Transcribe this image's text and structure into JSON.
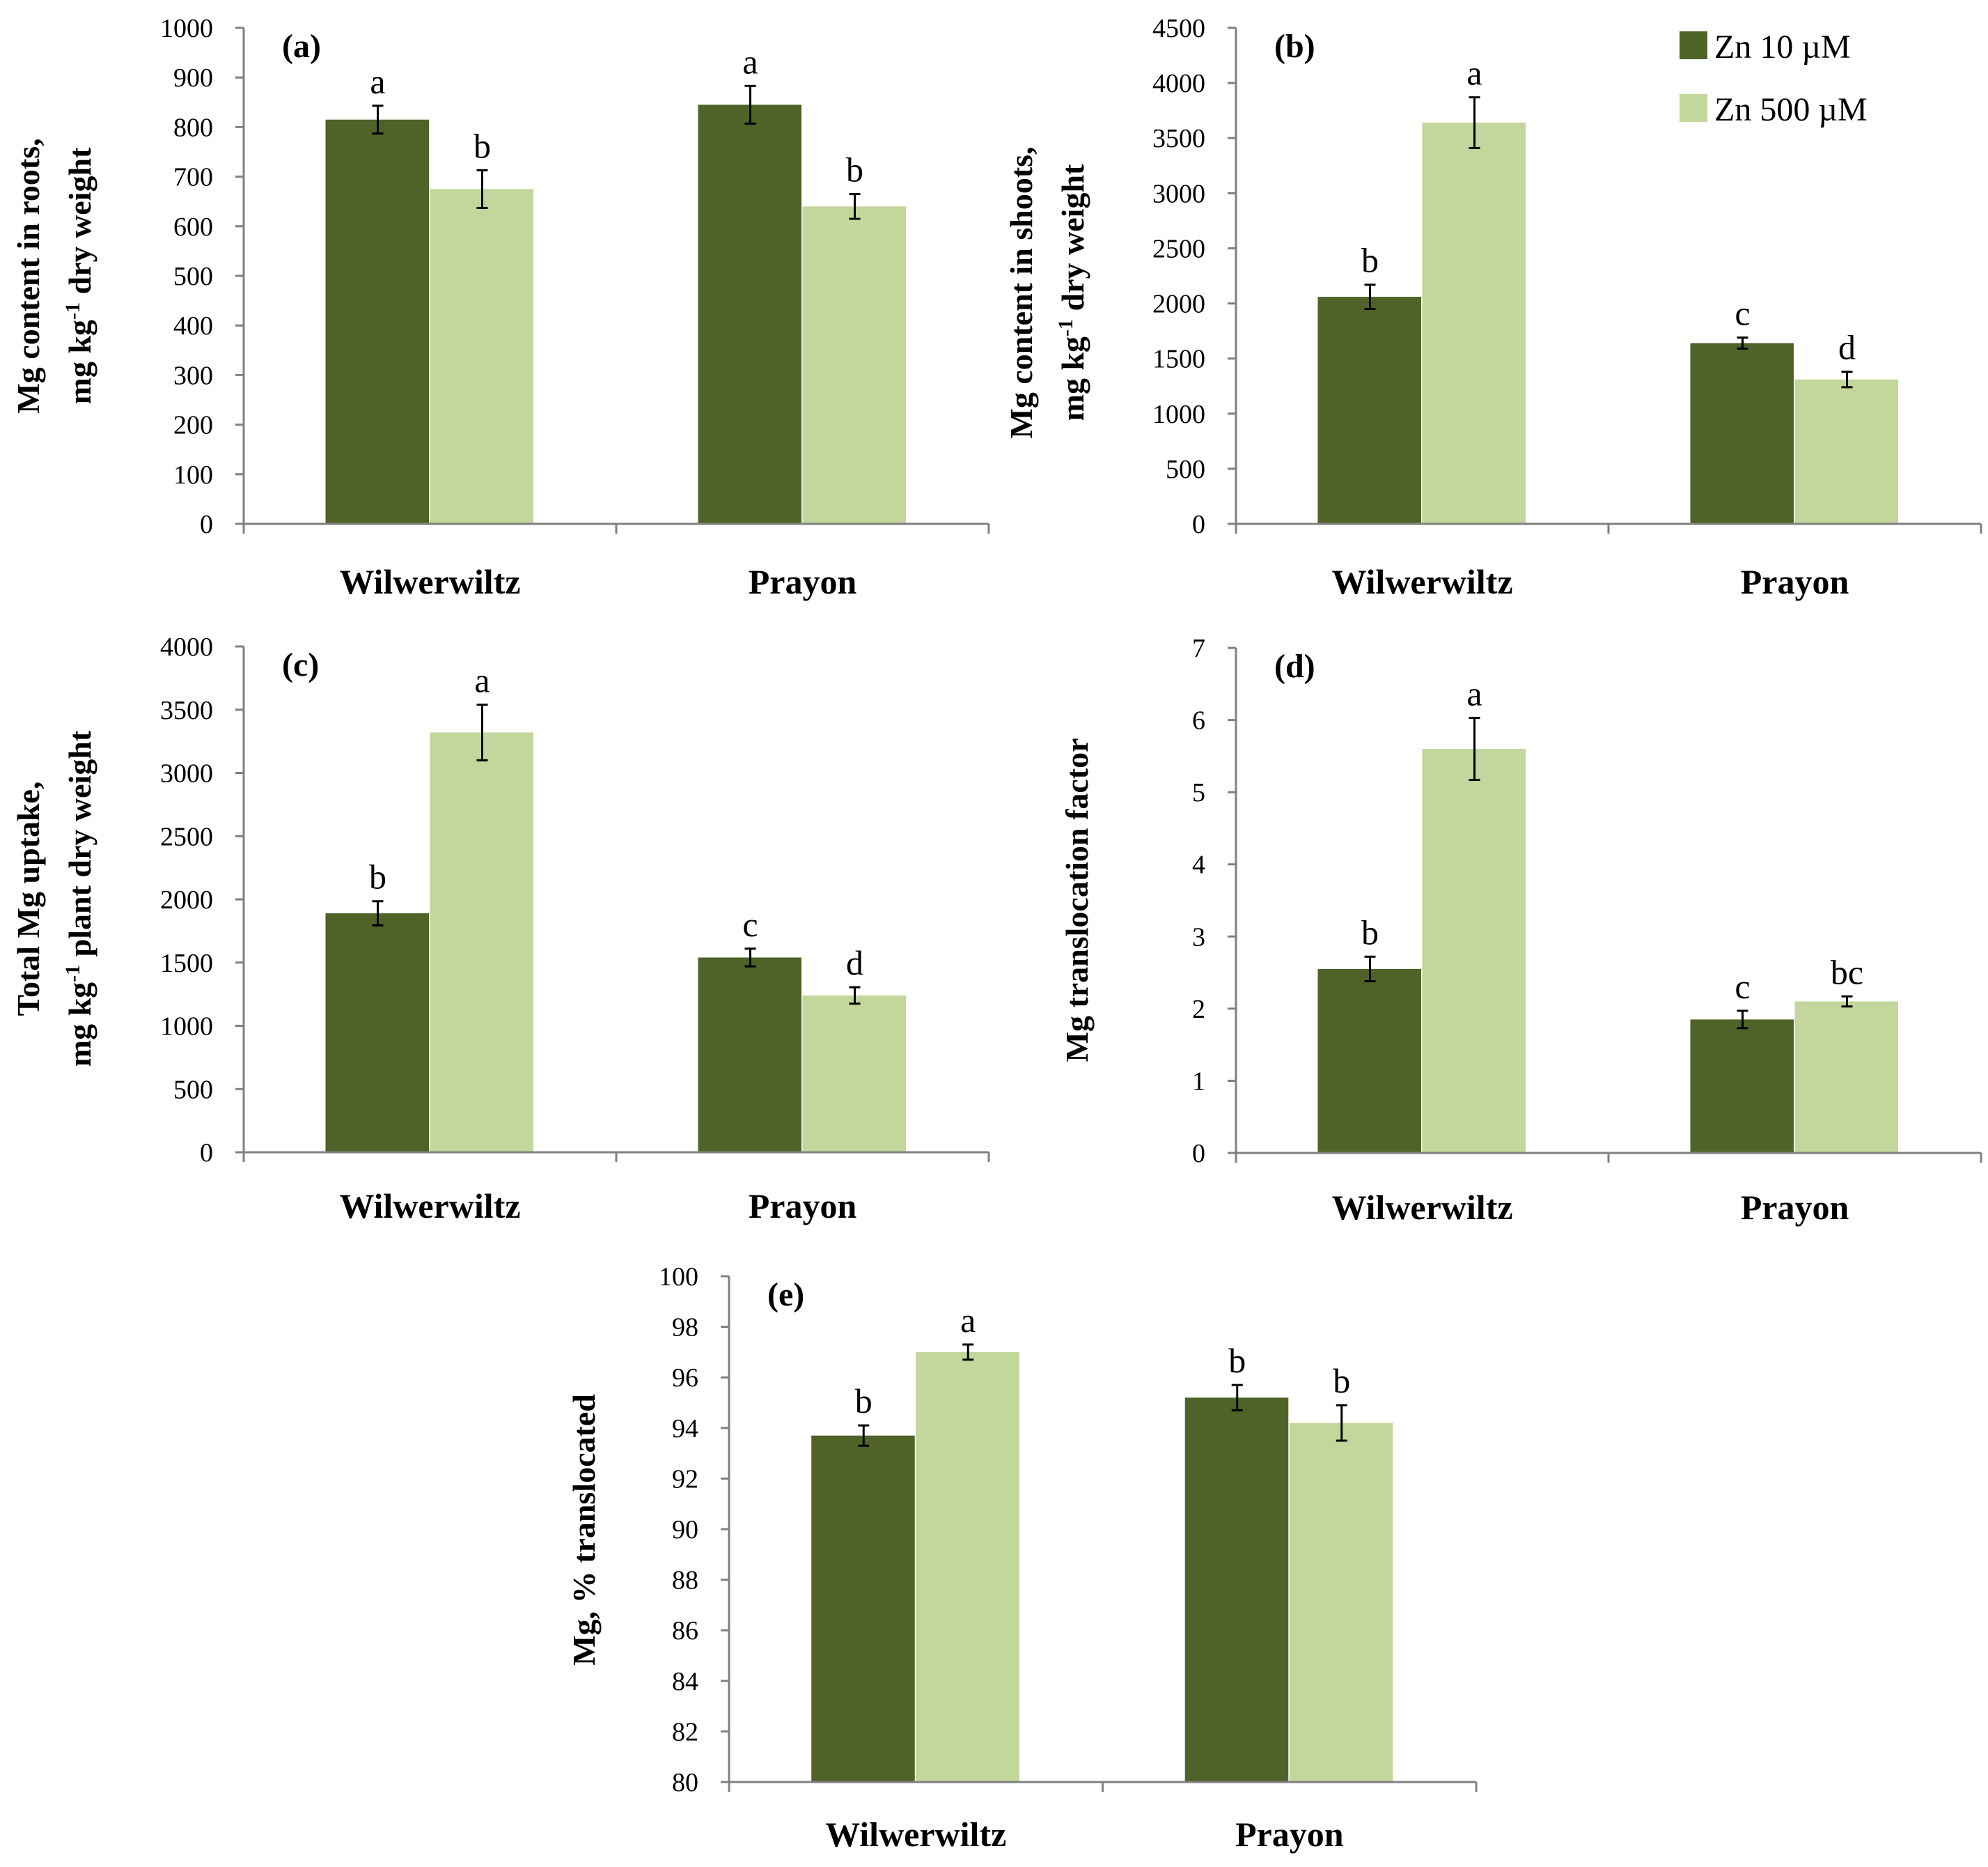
{
  "colors": {
    "dark": "#4f6228",
    "light": "#c3d69b",
    "axis": "#808080"
  },
  "legend": [
    {
      "label": "Zn 10 µM",
      "color": "#4f6228"
    },
    {
      "label": "Zn 500 µM",
      "color": "#c3d69b"
    }
  ],
  "chart_data": [
    {
      "id": "a",
      "panel_label": "(a)",
      "type": "bar",
      "ylabel": [
        "Mg content in roots,",
        "mg kg",
        "-1",
        " dry weight"
      ],
      "ylim": [
        0,
        1000
      ],
      "yticks": [
        0,
        100,
        200,
        300,
        400,
        500,
        600,
        700,
        800,
        900,
        1000
      ],
      "categories": [
        "Wilwerwiltz",
        "Prayon"
      ],
      "series": [
        {
          "name": "Zn 10 µM",
          "values": [
            815,
            845
          ],
          "errors": [
            28,
            38
          ],
          "letters": [
            "a",
            "a"
          ]
        },
        {
          "name": "Zn 500 µM",
          "values": [
            675,
            640
          ],
          "errors": [
            38,
            25
          ],
          "letters": [
            "b",
            "b"
          ]
        }
      ]
    },
    {
      "id": "b",
      "panel_label": "(b)",
      "type": "bar",
      "ylabel": [
        "Mg content in shoots,",
        "mg kg",
        "-1",
        " dry weight"
      ],
      "ylim": [
        0,
        4500
      ],
      "yticks": [
        0,
        500,
        1000,
        1500,
        2000,
        2500,
        3000,
        3500,
        4000,
        4500
      ],
      "categories": [
        "Wilwerwiltz",
        "Prayon"
      ],
      "series": [
        {
          "name": "Zn 10 µM",
          "values": [
            2060,
            1640
          ],
          "errors": [
            110,
            50
          ],
          "letters": [
            "b",
            "c"
          ]
        },
        {
          "name": "Zn 500 µM",
          "values": [
            3640,
            1310
          ],
          "errors": [
            230,
            70
          ],
          "letters": [
            "a",
            "d"
          ]
        }
      ]
    },
    {
      "id": "c",
      "panel_label": "(c)",
      "type": "bar",
      "ylabel": [
        "Total Mg uptake,",
        "mg kg",
        "-1",
        " plant dry weight"
      ],
      "ylim": [
        0,
        4000
      ],
      "yticks": [
        0,
        500,
        1000,
        1500,
        2000,
        2500,
        3000,
        3500,
        4000
      ],
      "categories": [
        "Wilwerwiltz",
        "Prayon"
      ],
      "series": [
        {
          "name": "Zn 10 µM",
          "values": [
            1890,
            1540
          ],
          "errors": [
            95,
            70
          ],
          "letters": [
            "b",
            "c"
          ]
        },
        {
          "name": "Zn 500 µM",
          "values": [
            3320,
            1240
          ],
          "errors": [
            220,
            65
          ],
          "letters": [
            "a",
            "d"
          ]
        }
      ]
    },
    {
      "id": "d",
      "panel_label": "(d)",
      "type": "bar",
      "ylabel": [
        "Mg translocation factor"
      ],
      "ylim": [
        0,
        7
      ],
      "yticks": [
        0,
        1,
        2,
        3,
        4,
        5,
        6,
        7
      ],
      "categories": [
        "Wilwerwiltz",
        "Prayon"
      ],
      "series": [
        {
          "name": "Zn 10 µM",
          "values": [
            2.55,
            1.85
          ],
          "errors": [
            0.17,
            0.12
          ],
          "letters": [
            "b",
            "c"
          ]
        },
        {
          "name": "Zn 500 µM",
          "values": [
            5.6,
            2.1
          ],
          "errors": [
            0.43,
            0.07
          ],
          "letters": [
            "a",
            "bc"
          ]
        }
      ]
    },
    {
      "id": "e",
      "panel_label": "(e)",
      "type": "bar",
      "ylabel": [
        "Mg, % translocated"
      ],
      "ylim": [
        80,
        100
      ],
      "yticks": [
        80,
        82,
        84,
        86,
        88,
        90,
        92,
        94,
        96,
        98,
        100
      ],
      "categories": [
        "Wilwerwiltz",
        "Prayon"
      ],
      "series": [
        {
          "name": "Zn 10 µM",
          "values": [
            93.7,
            95.2
          ],
          "errors": [
            0.4,
            0.5
          ],
          "letters": [
            "b",
            "b"
          ]
        },
        {
          "name": "Zn 500 µM",
          "values": [
            97.0,
            94.2
          ],
          "errors": [
            0.3,
            0.7
          ],
          "letters": [
            "a",
            "b"
          ]
        }
      ]
    }
  ]
}
